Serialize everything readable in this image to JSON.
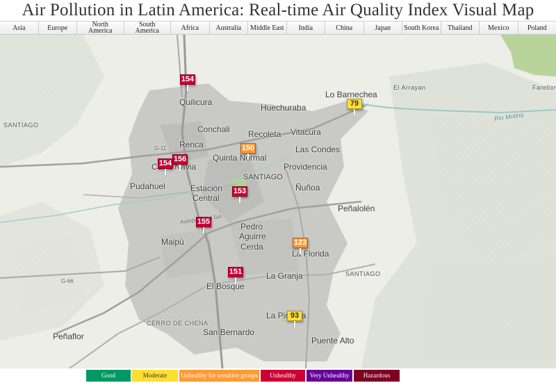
{
  "title": "Air Pollution in Latin America: Real-time Air Quality Index Visual Map",
  "tabs": [
    "Asia",
    "Europe",
    "North America",
    "South America",
    "Africa",
    "Australia",
    "Middle East",
    "India",
    "China",
    "Japan",
    "South Korea",
    "Thailand",
    "Mexico",
    "Poland"
  ],
  "places": {
    "quilicura": "Quilicura",
    "huechuraba": "Huechuraba",
    "lo_barnechea": "Lo Barnechea",
    "el_arrayan": "El Arrayan",
    "farellon": "Farellon",
    "conchali": "Conchali",
    "recoleta": "Recoleta",
    "vitacura": "Vitacura",
    "renca": "Renca",
    "quinta_normal": "Quinta Normal",
    "las_condes": "Las Condes",
    "providencia": "Providencia",
    "cerro_navia": "Cerro Navia",
    "pudahuel": "Pudahuel",
    "santiago_center": "SANTIAGO",
    "estacion_central_1": "Estación",
    "estacion_central_2": "Central",
    "nunoa": "Ñuñoa",
    "penalolen": "Peñalolén",
    "maipu": "Maipú",
    "pedro_aguirre_cerda_1": "Pedro",
    "pedro_aguirre_cerda_2": "Aguirre",
    "pedro_aguirre_cerda_3": "Cerda",
    "la_florida": "La Florida",
    "la_granja": "La Granja",
    "el_bosque": "El Bosque",
    "santiago_region_east": "SANTIAGO",
    "santiago_region_west": "SANTIAGO",
    "la_pintana": "La Pintana",
    "san_bernardo": "San Bernardo",
    "puente_alto": "Puente Alto",
    "penaflor": "Peñaflor",
    "cerro_de_chena": "CERRO DE CHENA",
    "rio_molina": "Rio Molina",
    "autopista": "Autopista del Sol",
    "g11": "G-11",
    "g66": "G-66"
  },
  "stations": [
    {
      "aqi": "154",
      "color": "#cc0033"
    },
    {
      "aqi": "79",
      "color": "#ffde33"
    },
    {
      "aqi": "150",
      "color": "#ff9933"
    },
    {
      "aqi": "156",
      "color": "#cc0033"
    },
    {
      "aqi": "154",
      "color": "#cc0033"
    },
    {
      "aqi": "153",
      "color": "#cc0033"
    },
    {
      "aqi": "155",
      "color": "#cc0033"
    },
    {
      "aqi": "123",
      "color": "#ff9933"
    },
    {
      "aqi": "151",
      "color": "#cc0033"
    },
    {
      "aqi": "93",
      "color": "#ffde33"
    }
  ],
  "legend": [
    {
      "label": "Good",
      "color": "#009966"
    },
    {
      "label": "Moderate",
      "color": "#ffde33"
    },
    {
      "label": "Unhealthy for sensitive groups",
      "color": "#ff9933"
    },
    {
      "label": "Unhealthy",
      "color": "#cc0033"
    },
    {
      "label": "Very Unhealthy",
      "color": "#660099"
    },
    {
      "label": "Hazardous",
      "color": "#7e0023"
    }
  ]
}
